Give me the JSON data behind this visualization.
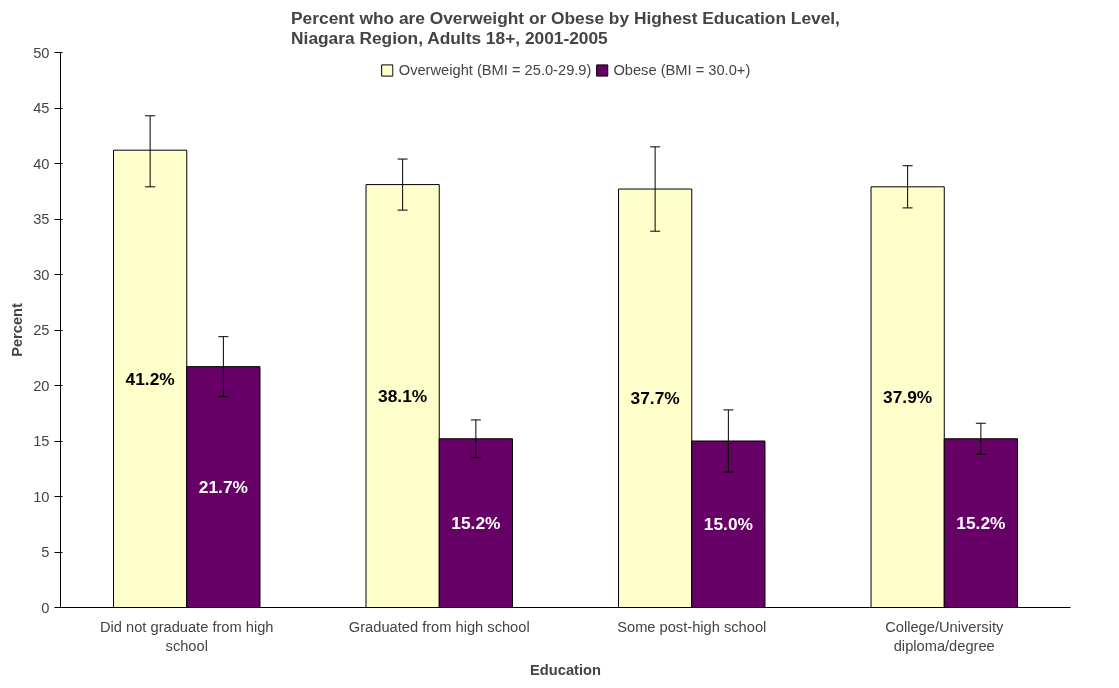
{
  "chart_data": {
    "type": "bar",
    "title": "Percent who are Overweight or Obese by Highest Education Level, Niagara Region, Adults 18+, 2001-2005",
    "xlabel": "Education",
    "ylabel": "Percent",
    "categories": [
      "Did not graduate from high school",
      "Graduated from high school",
      "Some post-high school",
      "College/University diploma/degree"
    ],
    "series": [
      {
        "name": "Overweight (BMI = 25.0-29.9)",
        "color": "#ffffcc",
        "values": [
          41.2,
          38.1,
          37.7,
          37.9
        ],
        "errors": [
          [
            37.9,
            44.3
          ],
          [
            35.8,
            40.4
          ],
          [
            33.9,
            41.5
          ],
          [
            36.0,
            39.8
          ]
        ],
        "value_labels": [
          "41.2%",
          "38.1%",
          "37.7%",
          "37.9%"
        ]
      },
      {
        "name": "Obese (BMI = 30.0+)",
        "color": "#660066",
        "values": [
          21.7,
          15.2,
          15.0,
          15.2
        ],
        "errors": [
          [
            19.0,
            24.4
          ],
          [
            13.5,
            16.9
          ],
          [
            12.2,
            17.8
          ],
          [
            13.8,
            16.6
          ]
        ],
        "value_labels": [
          "21.7%",
          "15.2%",
          "15.0%",
          "15.2%"
        ]
      }
    ],
    "ylim": [
      0,
      50
    ],
    "yticks": [
      0,
      5,
      10,
      15,
      20,
      25,
      30,
      35,
      40,
      45,
      50
    ],
    "legend": "top",
    "grid": false
  }
}
